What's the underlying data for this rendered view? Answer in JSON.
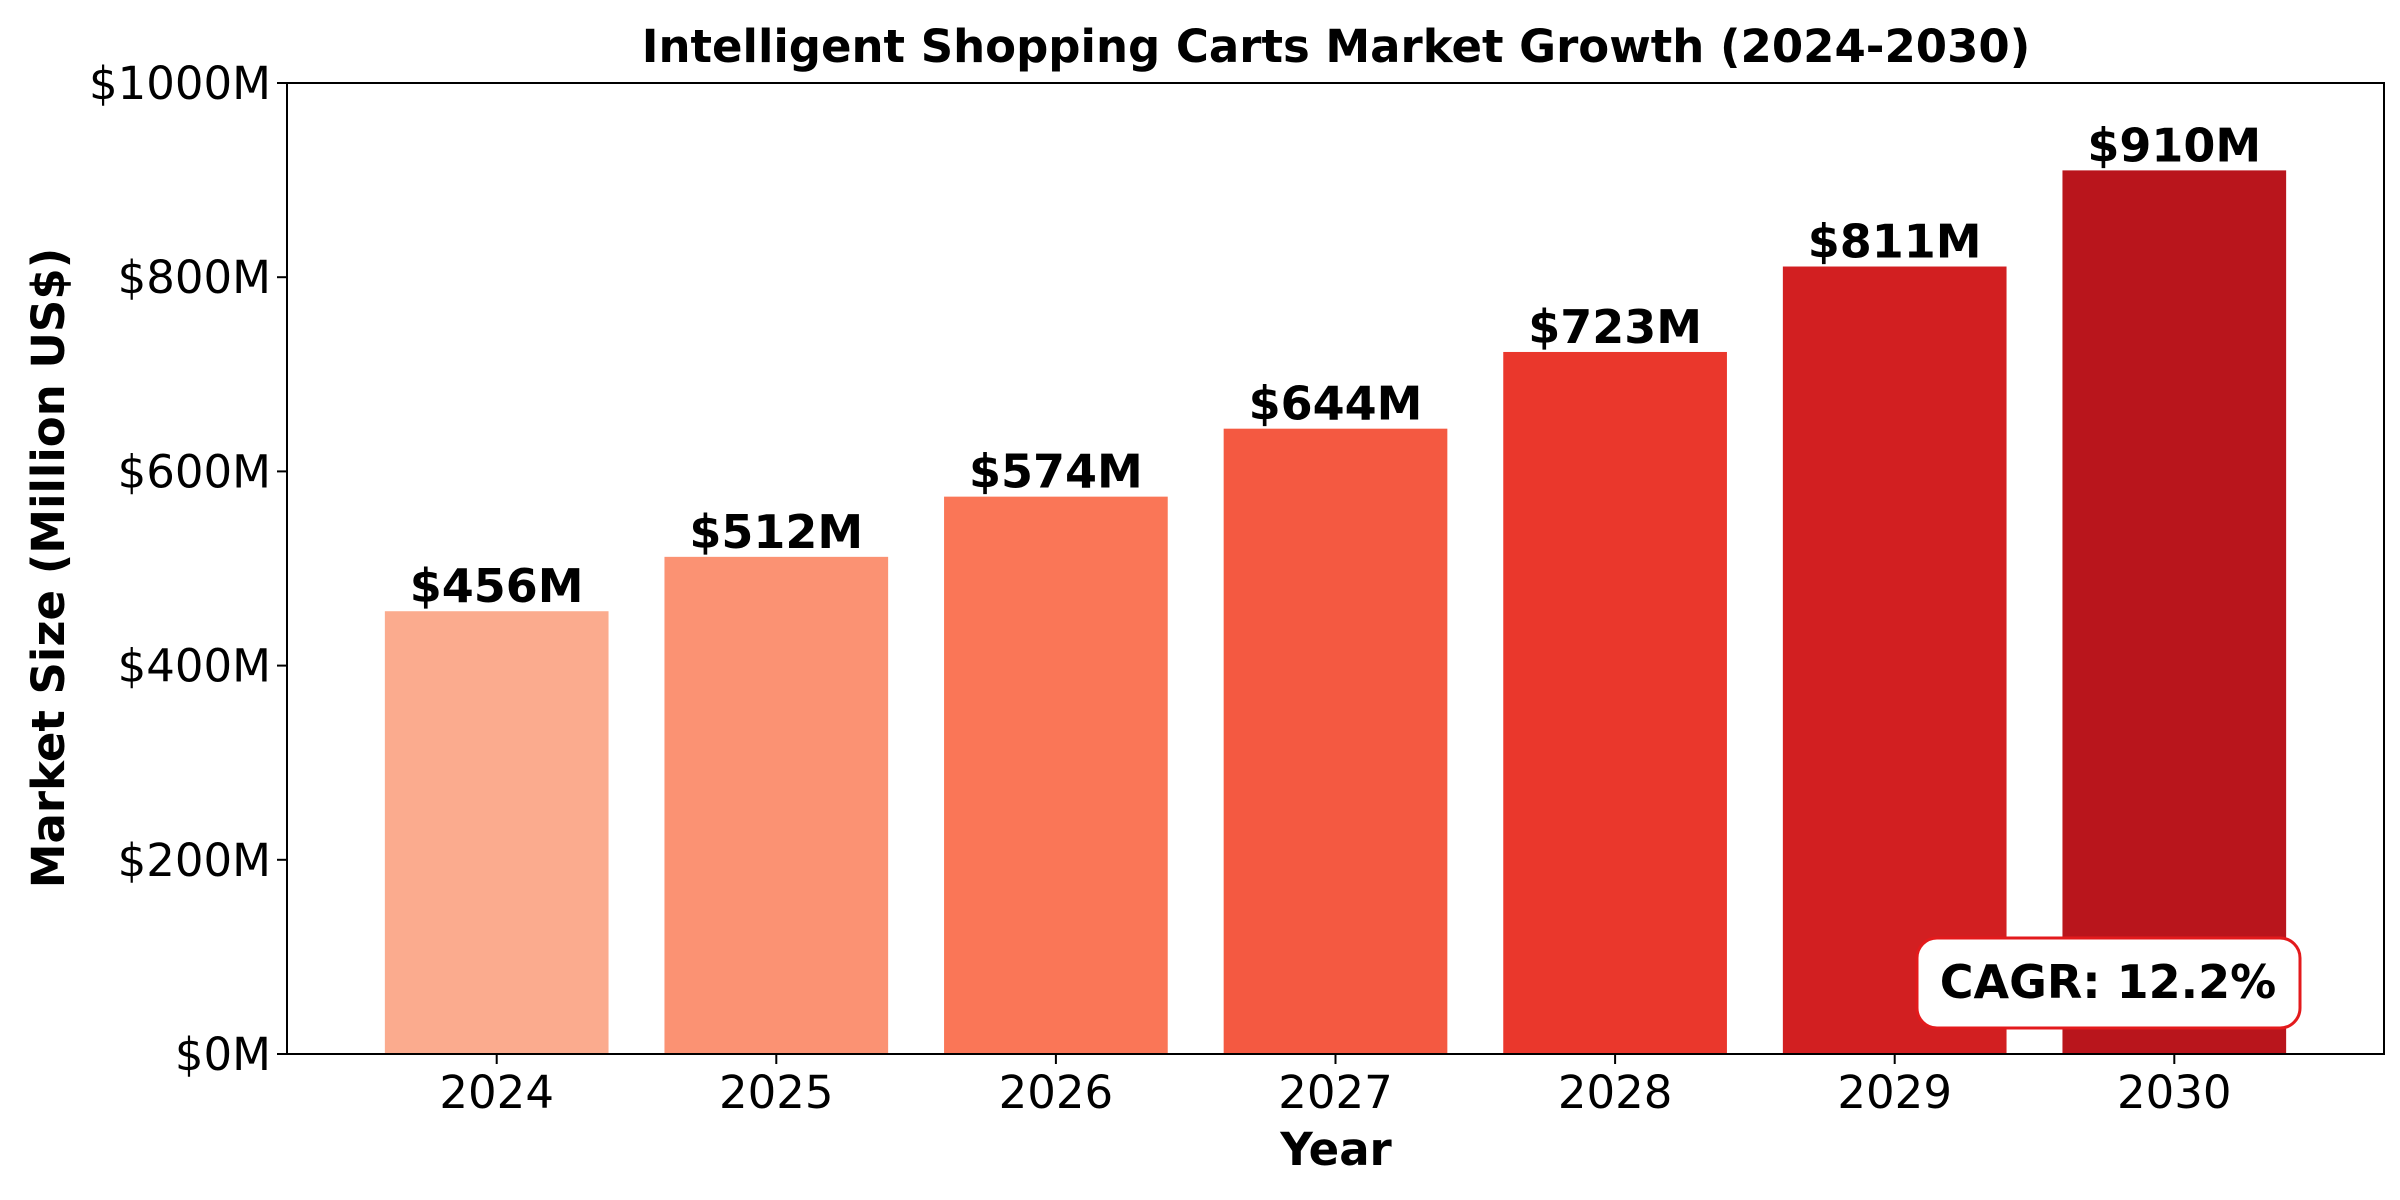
{
  "chart_data": {
    "type": "bar",
    "title": "Intelligent Shopping Carts Market Growth (2024-2030)",
    "xlabel": "Year",
    "ylabel": "Market Size (Million US$)",
    "categories": [
      "2024",
      "2025",
      "2026",
      "2027",
      "2028",
      "2029",
      "2030"
    ],
    "values": [
      456,
      512,
      574,
      644,
      723,
      811,
      910
    ],
    "value_labels": [
      "$456M",
      "$512M",
      "$574M",
      "$644M",
      "$723M",
      "$811M",
      "$910M"
    ],
    "colors": [
      "#fbab8e",
      "#fb9273",
      "#fa7657",
      "#f45941",
      "#ea372c",
      "#d21f21",
      "#b9151c"
    ],
    "ylim": [
      0,
      1000
    ],
    "yticks": [
      0,
      200,
      400,
      600,
      800,
      1000
    ],
    "ytick_labels": [
      "$0M",
      "$200M",
      "$400M",
      "$600M",
      "$800M",
      "$1000M"
    ],
    "grid": false,
    "legend": "none",
    "annotation": {
      "text": "CAGR: 12.2%",
      "placement": "bottom-right",
      "border_color": "#e31a1c"
    }
  }
}
